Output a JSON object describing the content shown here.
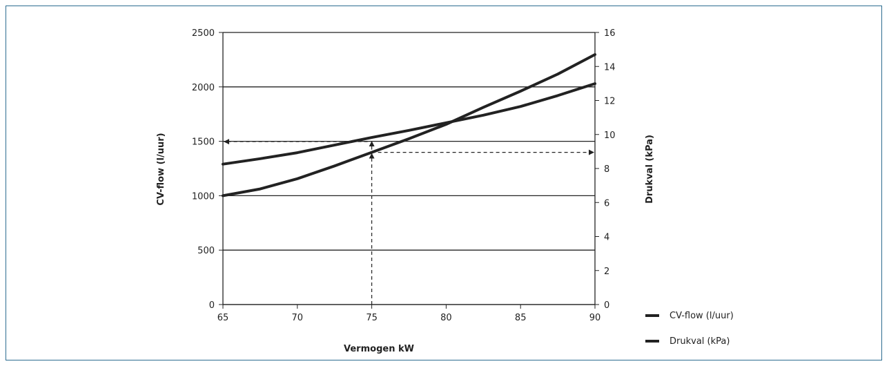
{
  "chart_data": {
    "type": "line",
    "title": "",
    "xlabel": "Vermogen kW",
    "ylabel": "CV-flow (l/uur)",
    "y2label": "Drukval (kPa)",
    "xlim": [
      65,
      90
    ],
    "ylim": [
      0,
      2500
    ],
    "y2lim": [
      0,
      16
    ],
    "x_ticks": [
      "65",
      "70",
      "75",
      "80",
      "85",
      "90"
    ],
    "y_ticks": [
      "0",
      "500",
      "1000",
      "1500",
      "2000",
      "2500"
    ],
    "y2_ticks": [
      "0",
      "2",
      "4",
      "6",
      "8",
      "10",
      "12",
      "14",
      "16"
    ],
    "grid": "horizontal",
    "legend": "right",
    "series": [
      {
        "name": "CV-flow (l/uur)",
        "axis": "left",
        "x": [
          65,
          67.5,
          70,
          72.5,
          75,
          77.5,
          80,
          82.5,
          85,
          87.5,
          90
        ],
        "values": [
          1290,
          1340,
          1395,
          1465,
          1535,
          1600,
          1670,
          1740,
          1820,
          1920,
          2030
        ]
      },
      {
        "name": "Drukval (kPa)",
        "axis": "right",
        "x": [
          65,
          67.5,
          70,
          72.5,
          75,
          77.5,
          80,
          82.5,
          85,
          87.5,
          90
        ],
        "values": [
          6.4,
          6.8,
          7.4,
          8.15,
          8.95,
          9.75,
          10.6,
          11.6,
          12.55,
          13.55,
          14.7
        ]
      }
    ],
    "annotations": [
      {
        "type": "arrow-path",
        "description": "dashed",
        "x": 75,
        "from_y2": 0,
        "to_y2": 8.95,
        "then_to_x": 90
      },
      {
        "type": "arrow-path",
        "description": "dashed",
        "x": 75,
        "from_y": 1535,
        "to_x": 65
      }
    ]
  }
}
